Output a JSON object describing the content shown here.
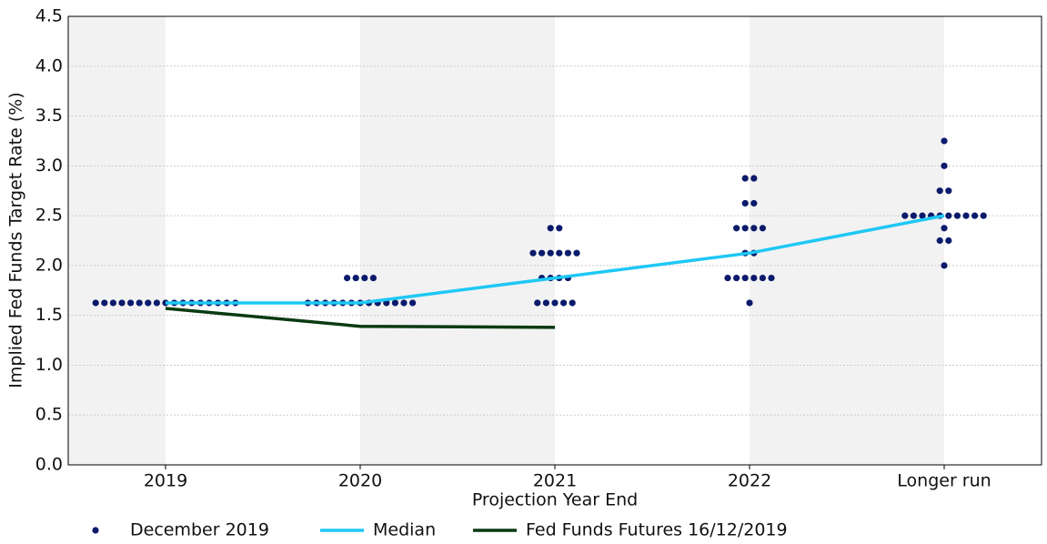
{
  "chart_data": {
    "type": "dotplot",
    "x_label": "Projection Year End",
    "y_label": "Implied Fed Funds Target Rate (%)",
    "categories": [
      "2019",
      "2020",
      "2021",
      "2022",
      "Longer run"
    ],
    "ylim": [
      0,
      4.5
    ],
    "yticks": [
      {
        "value": 0,
        "label": "0.0"
      },
      0.5,
      {
        "value": 1,
        "label": "1.0"
      },
      1.5,
      {
        "value": 2,
        "label": "2.0"
      },
      2.5,
      {
        "value": 3,
        "label": "3.0"
      },
      3.5,
      {
        "value": 4,
        "label": "4.0"
      },
      4.5
    ],
    "grid": true,
    "legend": "bottom",
    "series": [
      {
        "name": "December 2019",
        "style": "dots",
        "color": "#0b1a6b",
        "values": [
          [
            1.625,
            1.625,
            1.625,
            1.625,
            1.625,
            1.625,
            1.625,
            1.625,
            1.625,
            1.625,
            1.625,
            1.625,
            1.625,
            1.625,
            1.625,
            1.625,
            1.625
          ],
          [
            1.875,
            1.875,
            1.875,
            1.875,
            1.625,
            1.625,
            1.625,
            1.625,
            1.625,
            1.625,
            1.625,
            1.625,
            1.625,
            1.625,
            1.625,
            1.625,
            1.625
          ],
          [
            2.375,
            2.375,
            2.125,
            2.125,
            2.125,
            2.125,
            2.125,
            2.125,
            1.875,
            1.875,
            1.875,
            1.875,
            1.625,
            1.625,
            1.625,
            1.625,
            1.625
          ],
          [
            2.875,
            2.875,
            2.625,
            2.625,
            2.375,
            2.375,
            2.375,
            2.375,
            2.125,
            2.125,
            1.875,
            1.875,
            1.875,
            1.875,
            1.875,
            1.875,
            1.625
          ],
          [
            3.25,
            3,
            2.75,
            2.75,
            2.5,
            2.5,
            2.5,
            2.5,
            2.5,
            2.5,
            2.5,
            2.5,
            2.5,
            2.5,
            2.375,
            2.25,
            2.25,
            2
          ]
        ]
      },
      {
        "name": "Median",
        "style": "line",
        "color": "#1ec8f5",
        "values": [
          1.625,
          1.625,
          1.875,
          2.125,
          2.5
        ]
      },
      {
        "name": "Fed Funds Futures 16/12/2019",
        "style": "line",
        "color": "#0a3a12",
        "values": [
          1.57,
          1.39,
          1.38,
          null,
          null
        ]
      }
    ]
  }
}
